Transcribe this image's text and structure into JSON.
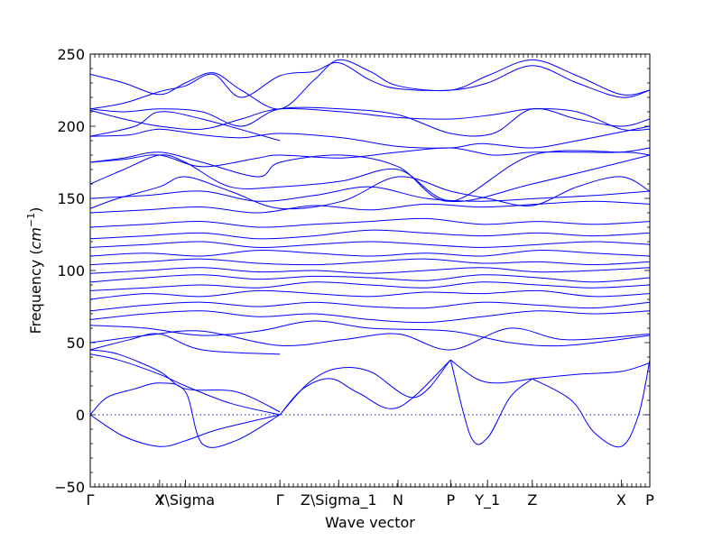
{
  "chart_data": {
    "type": "line",
    "title": "",
    "xlabel": "Wave vector",
    "ylabel_main": "Frequency (",
    "ylabel_math": "cm",
    "ylabel_sup": "−1",
    "ylabel_end": ")",
    "ylim": [
      -50,
      250
    ],
    "yticks": [
      "−50",
      "0",
      "50",
      "100",
      "150",
      "200",
      "250"
    ],
    "ytick_values": [
      -50,
      0,
      50,
      100,
      150,
      200,
      250
    ],
    "x_range": [
      0,
      1
    ],
    "kpoints": [
      {
        "label": "Γ",
        "x": 0.0
      },
      {
        "label": "X",
        "x": 0.124
      },
      {
        "label": "Y\\Sigma",
        "x": 0.17
      },
      {
        "label": "Γ",
        "x": 0.339
      },
      {
        "label": "Z\\Sigma_1",
        "x": 0.444
      },
      {
        "label": "N",
        "x": 0.55
      },
      {
        "label": "P",
        "x": 0.644
      },
      {
        "label": "Y_1",
        "x": 0.71
      },
      {
        "label": "Z",
        "x": 0.79
      },
      {
        "label": "X",
        "x": 0.949
      },
      {
        "label": "P",
        "x": 1.0
      }
    ],
    "line_color": "#0000ff",
    "zero_line": true,
    "series": [
      {
        "x": [
          0,
          0.06,
          0.124,
          0.17,
          0.23,
          0.339
        ],
        "y": [
          0,
          -15,
          -22,
          -18,
          -10,
          0
        ]
      },
      {
        "x": [
          0,
          0.03,
          0.08,
          0.124,
          0.17,
          0.2,
          0.26,
          0.339
        ],
        "y": [
          0,
          12,
          18,
          22,
          16,
          -20,
          -18,
          0
        ]
      },
      {
        "x": [
          0,
          0.05,
          0.124,
          0.17,
          0.25,
          0.339
        ],
        "y": [
          42,
          38,
          28,
          20,
          8,
          0
        ]
      },
      {
        "x": [
          0,
          0.05,
          0.124,
          0.17,
          0.26,
          0.339
        ],
        "y": [
          45,
          42,
          30,
          18,
          16,
          2
        ]
      },
      {
        "x": [
          0.339,
          0.38,
          0.43,
          0.48,
          0.55,
          0.644
        ],
        "y": [
          0,
          18,
          25,
          15,
          5,
          38
        ]
      },
      {
        "x": [
          0.339,
          0.39,
          0.44,
          0.5,
          0.58,
          0.644
        ],
        "y": [
          0,
          22,
          32,
          30,
          12,
          38
        ]
      },
      {
        "x": [
          0.644,
          0.68,
          0.71,
          0.75,
          0.79
        ],
        "y": [
          38,
          -15,
          -16,
          12,
          25
        ]
      },
      {
        "x": [
          0.644,
          0.69,
          0.73,
          0.79
        ],
        "y": [
          38,
          25,
          22,
          25
        ]
      },
      {
        "x": [
          0.79,
          0.86,
          0.9,
          0.949,
          0.98,
          1.0
        ],
        "y": [
          25,
          10,
          -12,
          -22,
          0,
          38
        ]
      },
      {
        "x": [
          0.79,
          0.87,
          0.949,
          1.0
        ],
        "y": [
          25,
          28,
          30,
          36
        ]
      },
      {
        "x": [
          0,
          0.07,
          0.124,
          0.2,
          0.339
        ],
        "y": [
          45,
          52,
          56,
          45,
          42
        ]
      },
      {
        "x": [
          0,
          0.1,
          0.2,
          0.339,
          0.45,
          0.55,
          0.644,
          0.75,
          0.85,
          1.0
        ],
        "y": [
          50,
          55,
          58,
          48,
          52,
          56,
          45,
          60,
          52,
          56
        ]
      },
      {
        "x": [
          0,
          0.1,
          0.2,
          0.3,
          0.4,
          0.5,
          0.644,
          0.75,
          0.85,
          1.0
        ],
        "y": [
          62,
          60,
          55,
          58,
          65,
          60,
          58,
          50,
          48,
          55
        ]
      },
      {
        "x": [
          0,
          0.1,
          0.2,
          0.3,
          0.4,
          0.5,
          0.6,
          0.7,
          0.8,
          0.9,
          1.0
        ],
        "y": [
          66,
          70,
          72,
          68,
          70,
          66,
          64,
          68,
          72,
          70,
          72
        ]
      },
      {
        "x": [
          0,
          0.1,
          0.2,
          0.3,
          0.4,
          0.5,
          0.6,
          0.7,
          0.8,
          0.9,
          1.0
        ],
        "y": [
          72,
          76,
          78,
          75,
          78,
          75,
          74,
          78,
          76,
          74,
          78
        ]
      },
      {
        "x": [
          0,
          0.1,
          0.2,
          0.3,
          0.4,
          0.5,
          0.6,
          0.7,
          0.8,
          0.9,
          1.0
        ],
        "y": [
          80,
          84,
          82,
          86,
          84,
          82,
          85,
          84,
          86,
          82,
          84
        ]
      },
      {
        "x": [
          0,
          0.1,
          0.2,
          0.3,
          0.4,
          0.5,
          0.6,
          0.7,
          0.8,
          0.9,
          1.0
        ],
        "y": [
          86,
          88,
          90,
          88,
          92,
          90,
          88,
          92,
          90,
          88,
          90
        ]
      },
      {
        "x": [
          0,
          0.1,
          0.2,
          0.3,
          0.4,
          0.5,
          0.6,
          0.7,
          0.8,
          0.9,
          1.0
        ],
        "y": [
          92,
          95,
          97,
          94,
          96,
          95,
          93,
          97,
          95,
          92,
          95
        ]
      },
      {
        "x": [
          0,
          0.1,
          0.2,
          0.3,
          0.4,
          0.5,
          0.6,
          0.7,
          0.8,
          0.9,
          1.0
        ],
        "y": [
          98,
          100,
          102,
          99,
          100,
          98,
          100,
          102,
          99,
          100,
          102
        ]
      },
      {
        "x": [
          0,
          0.1,
          0.2,
          0.3,
          0.4,
          0.5,
          0.6,
          0.7,
          0.8,
          0.9,
          1.0
        ],
        "y": [
          104,
          106,
          108,
          105,
          104,
          106,
          108,
          105,
          106,
          104,
          106
        ]
      },
      {
        "x": [
          0,
          0.1,
          0.2,
          0.3,
          0.4,
          0.5,
          0.6,
          0.7,
          0.8,
          0.9,
          1.0
        ],
        "y": [
          110,
          112,
          110,
          114,
          112,
          110,
          112,
          110,
          114,
          112,
          110
        ]
      },
      {
        "x": [
          0,
          0.1,
          0.2,
          0.3,
          0.4,
          0.5,
          0.6,
          0.7,
          0.8,
          0.9,
          1.0
        ],
        "y": [
          116,
          118,
          120,
          116,
          118,
          120,
          118,
          116,
          118,
          120,
          118
        ]
      },
      {
        "x": [
          0,
          0.1,
          0.2,
          0.3,
          0.4,
          0.5,
          0.6,
          0.7,
          0.8,
          0.9,
          1.0
        ],
        "y": [
          122,
          124,
          126,
          122,
          124,
          128,
          126,
          124,
          126,
          124,
          126
        ]
      },
      {
        "x": [
          0,
          0.1,
          0.2,
          0.3,
          0.4,
          0.5,
          0.6,
          0.7,
          0.8,
          0.9,
          1.0
        ],
        "y": [
          130,
          132,
          134,
          130,
          132,
          134,
          136,
          132,
          134,
          132,
          134
        ]
      },
      {
        "x": [
          0,
          0.1,
          0.2,
          0.3,
          0.4,
          0.5,
          0.6,
          0.7,
          0.8,
          0.9,
          1.0
        ],
        "y": [
          140,
          142,
          144,
          140,
          145,
          142,
          146,
          144,
          146,
          148,
          146
        ]
      },
      {
        "x": [
          0,
          0.1,
          0.2,
          0.3,
          0.4,
          0.5,
          0.6,
          0.7,
          0.8,
          0.9,
          1.0
        ],
        "y": [
          150,
          152,
          155,
          148,
          152,
          158,
          150,
          148,
          150,
          152,
          155
        ]
      },
      {
        "x": [
          0,
          0.05,
          0.124,
          0.17,
          0.25,
          0.339,
          0.45,
          0.55,
          0.644,
          0.71,
          0.79,
          0.87,
          0.949,
          1.0
        ],
        "y": [
          143,
          150,
          158,
          165,
          155,
          143,
          148,
          165,
          155,
          150,
          145,
          158,
          165,
          155
        ]
      },
      {
        "x": [
          0,
          0.06,
          0.124,
          0.17,
          0.25,
          0.339,
          0.45,
          0.55,
          0.644,
          0.79,
          0.949,
          1.0
        ],
        "y": [
          160,
          170,
          180,
          175,
          158,
          158,
          162,
          170,
          148,
          160,
          175,
          180
        ]
      },
      {
        "x": [
          0,
          0.06,
          0.124,
          0.2,
          0.3,
          0.339,
          0.45,
          0.55,
          0.644,
          0.79,
          0.949,
          1.0
        ],
        "y": [
          175,
          178,
          182,
          175,
          165,
          175,
          180,
          172,
          148,
          180,
          182,
          180
        ]
      },
      {
        "x": [
          0,
          0.06,
          0.124,
          0.2,
          0.3,
          0.339,
          0.45,
          0.55,
          0.644,
          0.72,
          0.79,
          0.87,
          0.949,
          1.0
        ],
        "y": [
          175,
          177,
          180,
          172,
          178,
          180,
          178,
          182,
          185,
          180,
          182,
          182,
          182,
          185
        ]
      },
      {
        "x": [
          0,
          0.07,
          0.124,
          0.2,
          0.27,
          0.339,
          0.45,
          0.55,
          0.644,
          0.7,
          0.79,
          0.87,
          0.949,
          1.0
        ],
        "y": [
          193,
          194,
          198,
          194,
          192,
          195,
          192,
          186,
          185,
          188,
          185,
          190,
          196,
          200
        ]
      },
      {
        "x": [
          0,
          0.06,
          0.124,
          0.2,
          0.27,
          0.339,
          0.45,
          0.55,
          0.644,
          0.72,
          0.79,
          0.87,
          0.949,
          1.0
        ],
        "y": [
          211,
          205,
          200,
          198,
          205,
          212,
          210,
          206,
          205,
          208,
          212,
          210,
          198,
          198
        ]
      },
      {
        "x": [
          0,
          0.06,
          0.124,
          0.2,
          0.27,
          0.339,
          0.45,
          0.55,
          0.644,
          0.72,
          0.79,
          0.87,
          0.949,
          1.0
        ],
        "y": [
          212,
          210,
          212,
          210,
          200,
          212,
          212,
          208,
          195,
          195,
          212,
          205,
          200,
          205
        ]
      },
      {
        "x": [
          0,
          0.06,
          0.124,
          0.17,
          0.22,
          0.27,
          0.339,
          0.4,
          0.444,
          0.5,
          0.55,
          0.644,
          0.71,
          0.79,
          0.87,
          0.949,
          1.0
        ],
        "y": [
          236,
          230,
          222,
          230,
          237,
          225,
          212,
          232,
          246,
          238,
          228,
          225,
          235,
          246,
          235,
          222,
          225
        ]
      },
      {
        "x": [
          0,
          0.06,
          0.124,
          0.17,
          0.22,
          0.27,
          0.339,
          0.4,
          0.444,
          0.5,
          0.55,
          0.644,
          0.71,
          0.79,
          0.87,
          0.949,
          1.0
        ],
        "y": [
          212,
          216,
          224,
          228,
          236,
          220,
          235,
          238,
          244,
          232,
          226,
          225,
          230,
          242,
          230,
          220,
          225
        ]
      },
      {
        "x": [
          0,
          0.08,
          0.124,
          0.2,
          0.339
        ],
        "y": [
          193,
          200,
          210,
          205,
          190
        ]
      }
    ]
  }
}
